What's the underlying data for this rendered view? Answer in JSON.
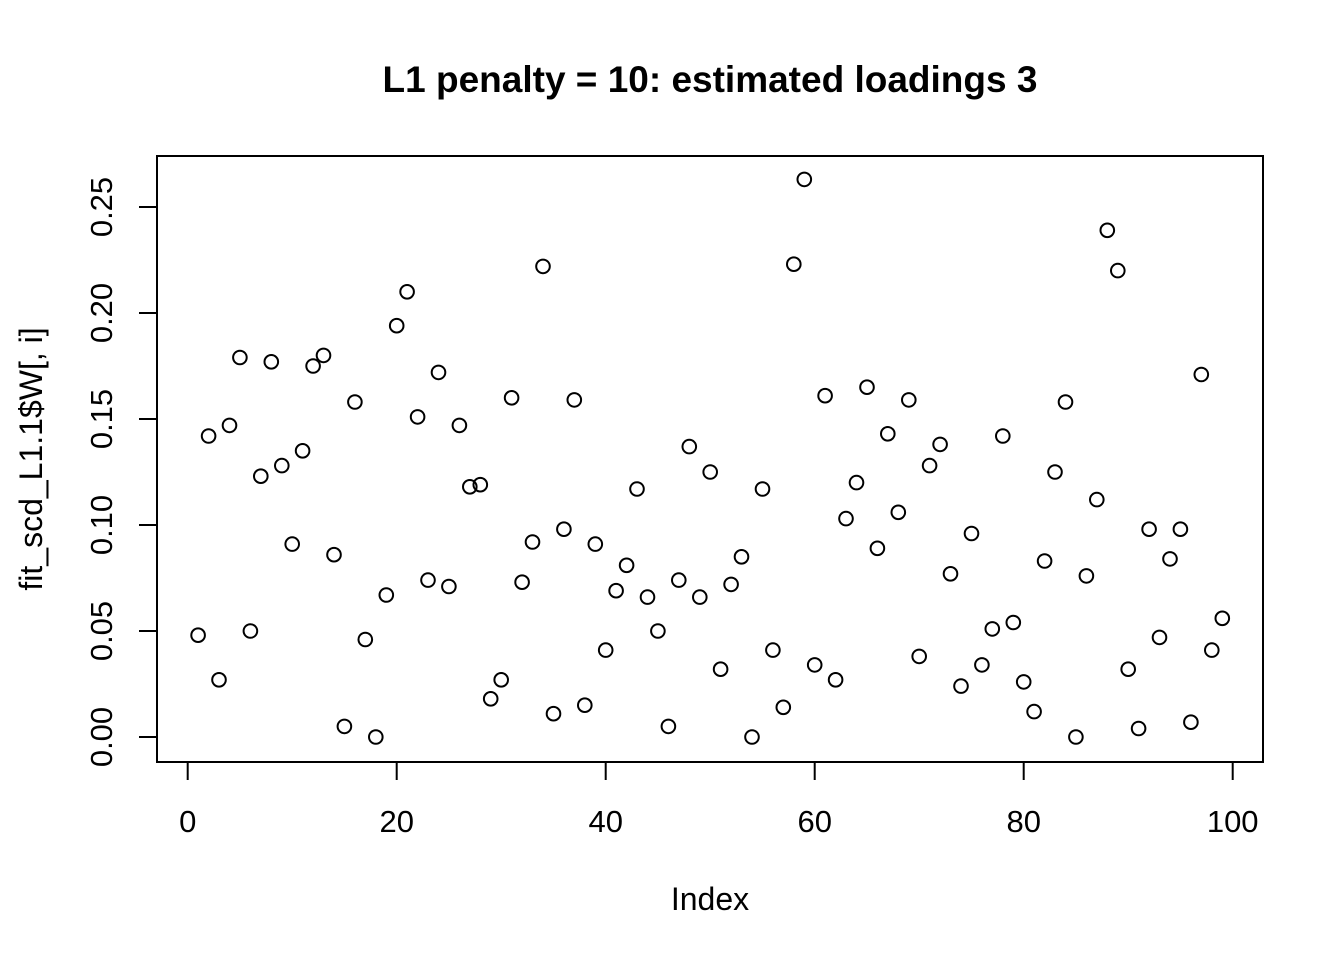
{
  "title": "L1 penalty = 10: estimated loadings 3",
  "colors": {
    "foreground": "#000000",
    "background": "#ffffff"
  },
  "chart_data": {
    "type": "scatter",
    "title": "L1 penalty = 10: estimated loadings 3",
    "xlabel": "Index",
    "ylabel": "fit_scd_L1.1$W[, i]",
    "marker": "open-circle",
    "grid": false,
    "legend": null,
    "xlim": [
      -3,
      103
    ],
    "ylim": [
      -0.012,
      0.274
    ],
    "x_ticks": [
      0,
      20,
      40,
      60,
      80,
      100
    ],
    "y_ticks": [
      "0.00",
      "0.05",
      "0.10",
      "0.15",
      "0.20",
      "0.25"
    ],
    "x": [
      1,
      2,
      3,
      4,
      5,
      6,
      7,
      8,
      9,
      10,
      11,
      12,
      13,
      14,
      15,
      16,
      17,
      18,
      19,
      20,
      21,
      22,
      23,
      24,
      25,
      26,
      27,
      28,
      29,
      30,
      31,
      32,
      33,
      34,
      35,
      36,
      37,
      38,
      39,
      40,
      41,
      42,
      43,
      44,
      45,
      46,
      47,
      48,
      49,
      50,
      51,
      52,
      53,
      54,
      55,
      56,
      57,
      58,
      59,
      60,
      61,
      62,
      63,
      64,
      65,
      66,
      67,
      68,
      69,
      70,
      71,
      72,
      73,
      74,
      75,
      76,
      77,
      78,
      79,
      80,
      81,
      82,
      83,
      84,
      85,
      86,
      87,
      88,
      89,
      90,
      91,
      92,
      93,
      94,
      95,
      96,
      97,
      98,
      99
    ],
    "values": [
      0.048,
      0.142,
      0.027,
      0.147,
      0.179,
      0.05,
      0.123,
      0.177,
      0.128,
      0.091,
      0.135,
      0.175,
      0.18,
      0.086,
      0.005,
      0.158,
      0.046,
      0.0,
      0.067,
      0.194,
      0.21,
      0.151,
      0.074,
      0.172,
      0.071,
      0.147,
      0.118,
      0.119,
      0.018,
      0.027,
      0.16,
      0.073,
      0.092,
      0.222,
      0.011,
      0.098,
      0.159,
      0.015,
      0.091,
      0.041,
      0.069,
      0.081,
      0.117,
      0.066,
      0.05,
      0.005,
      0.074,
      0.137,
      0.066,
      0.125,
      0.032,
      0.072,
      0.085,
      0.0,
      0.117,
      0.041,
      0.014,
      0.223,
      0.263,
      0.034,
      0.161,
      0.027,
      0.103,
      0.12,
      0.165,
      0.089,
      0.143,
      0.106,
      0.159,
      0.038,
      0.128,
      0.138,
      0.077,
      0.024,
      0.096,
      0.034,
      0.051,
      0.142,
      0.054,
      0.026,
      0.012,
      0.083,
      0.125,
      0.158,
      0.0,
      0.076,
      0.112,
      0.239,
      0.22,
      0.032,
      0.004,
      0.098,
      0.047,
      0.084,
      0.098,
      0.007,
      0.171,
      0.041,
      0.056
    ]
  }
}
